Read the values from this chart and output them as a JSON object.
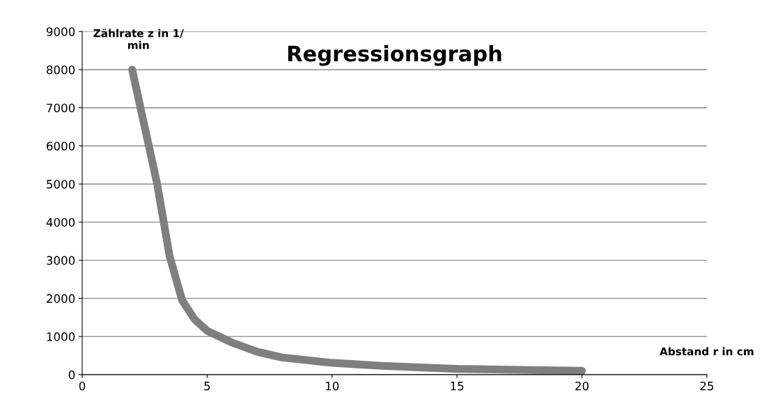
{
  "chart_data": {
    "type": "line",
    "title": "Regressionsgraph",
    "xlabel": "Abstand r in cm",
    "ylabel": "Zählrate z in 1/\nmin",
    "x": [
      2,
      2.5,
      3,
      3.5,
      4,
      4.5,
      5,
      6,
      7,
      8,
      10,
      12,
      15,
      20
    ],
    "series": [
      {
        "color": "#7f7f7f",
        "values": [
          8000,
          6500,
          5000,
          3100,
          1950,
          1450,
          1150,
          840,
          600,
          450,
          310,
          230,
          150,
          100
        ]
      }
    ],
    "xlim": [
      0,
      25
    ],
    "xticks": [
      0,
      5,
      10,
      15,
      20,
      25
    ],
    "ylim": [
      0,
      9000
    ],
    "yticks": [
      0,
      1000,
      2000,
      3000,
      4000,
      5000,
      6000,
      7000,
      8000,
      9000
    ],
    "grid": "y",
    "marker": "none",
    "line_style": "solid",
    "legend": false
  }
}
